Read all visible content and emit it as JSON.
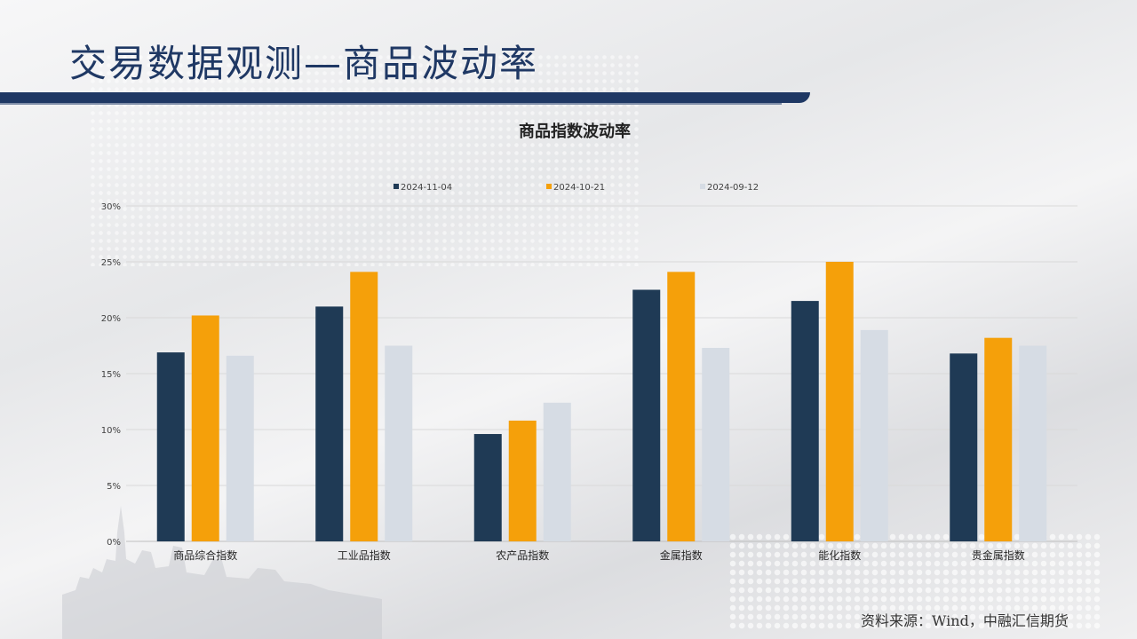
{
  "slide": {
    "title": "交易数据观测—商品波动率",
    "source": "资料来源：Wind，中融汇信期货"
  },
  "colors": {
    "title": "#1f3864",
    "series": [
      "#1f3a55",
      "#f5a00a",
      "#d6dce4"
    ]
  },
  "chart_data": {
    "type": "bar",
    "title": "商品指数波动率",
    "categories": [
      "商品综合指数",
      "工业品指数",
      "农产品指数",
      "金属指数",
      "能化指数",
      "贵金属指数"
    ],
    "series": [
      {
        "name": "2024-11-04",
        "values": [
          16.9,
          21.0,
          9.6,
          22.5,
          21.5,
          16.8
        ]
      },
      {
        "name": "2024-10-21",
        "values": [
          20.2,
          24.1,
          10.8,
          24.1,
          25.0,
          18.2
        ]
      },
      {
        "name": "2024-09-12",
        "values": [
          16.6,
          17.5,
          12.4,
          17.3,
          18.9,
          17.5
        ]
      }
    ],
    "ylim": [
      0,
      30
    ],
    "yticks": [
      0,
      5,
      10,
      15,
      20,
      25,
      30
    ],
    "ytick_labels": [
      "0%",
      "5%",
      "10%",
      "15%",
      "20%",
      "25%",
      "30%"
    ],
    "grid": true,
    "legend_position": "top-center"
  }
}
